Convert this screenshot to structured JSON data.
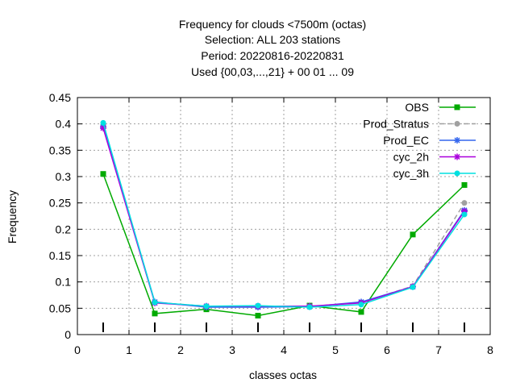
{
  "chart_data": {
    "type": "line",
    "title_lines": [
      "Frequency  for clouds <7500m (octas)",
      "Selection: ALL    203 stations",
      "Period: 20220816-20220831",
      "Used {00,03,...,21} + 00 01 ... 09"
    ],
    "xlabel": "classes octas",
    "ylabel": "Frequency",
    "xlim": [
      0,
      8
    ],
    "ylim": [
      0,
      0.45
    ],
    "xticks": [
      0,
      1,
      2,
      3,
      4,
      5,
      6,
      7,
      8
    ],
    "yticks": [
      0,
      0.05,
      0.1,
      0.15,
      0.2,
      0.25,
      0.3,
      0.35,
      0.4,
      0.45
    ],
    "xtick_labels": [
      "0",
      "1",
      "2",
      "3",
      "4",
      "5",
      "6",
      "7",
      "8"
    ],
    "ytick_labels": [
      "0",
      "0.05",
      "0.1",
      "0.15",
      "0.2",
      "0.25",
      "0.3",
      "0.35",
      "0.4",
      "0.45"
    ],
    "grid": true,
    "legend_position": "top-right",
    "x": [
      0.5,
      1.5,
      2.5,
      3.5,
      4.5,
      5.5,
      6.5,
      7.5
    ],
    "series": [
      {
        "name": "OBS",
        "color": "#00aa00",
        "dashed": false,
        "marker": "square",
        "values": [
          0.305,
          0.04,
          0.048,
          0.036,
          0.055,
          0.043,
          0.19,
          0.284
        ]
      },
      {
        "name": "Prod_Stratus",
        "color": "#a0a0a0",
        "dashed": true,
        "marker": "circle",
        "values": [
          0.397,
          0.061,
          0.054,
          0.053,
          0.053,
          0.061,
          0.092,
          0.25
        ]
      },
      {
        "name": "Prod_EC",
        "color": "#3366ee",
        "dashed": false,
        "marker": "star",
        "values": [
          0.395,
          0.062,
          0.052,
          0.052,
          0.053,
          0.062,
          0.091,
          0.236
        ]
      },
      {
        "name": "cyc_2h",
        "color": "#aa00dd",
        "dashed": false,
        "marker": "star",
        "values": [
          0.392,
          0.06,
          0.054,
          0.054,
          0.054,
          0.06,
          0.091,
          0.234
        ]
      },
      {
        "name": "cyc_3h",
        "color": "#00e0e0",
        "dashed": false,
        "marker": "circle",
        "values": [
          0.402,
          0.061,
          0.054,
          0.055,
          0.052,
          0.057,
          0.09,
          0.228
        ]
      }
    ]
  }
}
